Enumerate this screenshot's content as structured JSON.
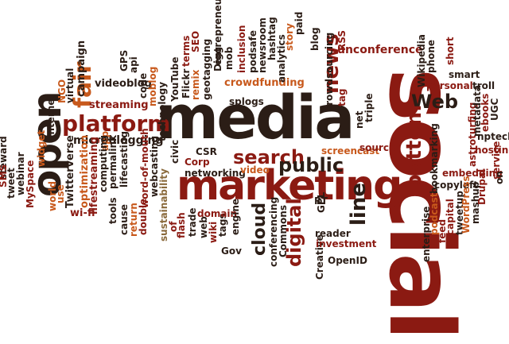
{
  "colors": {
    "dark": "#2b1d16",
    "red": "#8b1a12",
    "orange": "#c8591c",
    "tan": "#8a6a3c"
  },
  "words": {
    "social": "social",
    "media": "media",
    "marketing": "marketing",
    "open": "open",
    "platform": "platform",
    "fair": "fair",
    "news": "news",
    "search": "search",
    "public": "public",
    "Web": "Web",
    "bottom": "bottom",
    "line": "line",
    "digital": "digital",
    "cloud": "cloud",
    "unconference": "unconference",
    "crowdfunding": "crowdfunding",
    "microblogging": "microblogging",
    "streaming": "streaming",
    "videoblog": "videoblog",
    "campaign": "campaign",
    "virtual": "virtual",
    "NGO": "NGO",
    "Internet": "Internet",
    "widget": "widget",
    "MySpace": "MySpace",
    "webinar": "webinar",
    "tweet": "tweet",
    "steward": "steward",
    "SMS": "SMS",
    "Twitterverse": "Twitterverse",
    "world": "world",
    "use": "use",
    "wi-fi": "wi-fi",
    "optimization": "optimization",
    "lifestreaming": "lifestreaming",
    "app": "app",
    "computing": "computing",
    "permalink": "permalink",
    "tools": "tools",
    "cause": "cause",
    "return": "return",
    "double": "double",
    "lifecasting": "lifecasting",
    "word-of-mouth": "word-of-mouth",
    "webcasting": "webcasting",
    "sustainability": "sustainability",
    "civic": "civic",
    "flash": "flash",
    "trade": "trade",
    "of": "of",
    "wiki": "wiki",
    "web": "web",
    "tags": "tags",
    "domain": "domain",
    "networking": "networking",
    "Corp": "Corp",
    "CSR": "CSR",
    "video": "video",
    "engine": "engine",
    "Gov": "Gov",
    "GPS": "GPS",
    "api": "api",
    "code": "code",
    "moblog": "moblog",
    "technology": "technology",
    "YouTube": "YouTube",
    "Flickr": "Flickr",
    "terms": "terms",
    "remix": "remix",
    "SEO": "SEO",
    "geotagging": "geotagging",
    "Digg": "Digg",
    "mob": "mob",
    "entrepreneurship": "entrepreneurship",
    "inclusion": "inclusion",
    "podsafe": "podsafe",
    "newsroom": "newsroom",
    "hashtag": "hashtag",
    "analytics": "analytics",
    "story": "story",
    "paid": "paid",
    "blog": "blog",
    "RSS": "RSS",
    "splogs": "splogs",
    "crowdsourcing": "crowdsourcing",
    "tag": "tag",
    "net": "net",
    "triple": "triple",
    "screencast": "screencast",
    "source": "source",
    "RT": "RT",
    "GPL": "GPL",
    "conferencing": "conferencing",
    "Commons": "Commons",
    "Creative": "Creative",
    "reader": "reader",
    "investment": "investment",
    "OpenID": "OpenID",
    "enterprise": "enterprise",
    "bookmarking": "bookmarking",
    "copyleft": "copyleft",
    "embedding": "embedding",
    "podcast": "podcast",
    "feed": "feed",
    "capital": "capital",
    "tweetup": "tweetup",
    "WordPress": "WordPress",
    "mashup": "mashup",
    "astroturfing": "astroturfing",
    "Drupal": "Drupal",
    "ebooks": "ebooks",
    "metadata": "metadata",
    "hosting": "hosting",
    "nptech": "nptech",
    "service": "service",
    "on": "on",
    "UGC": "UGC",
    "Wikipedia": "Wikipedia",
    "phone": "phone",
    "short": "short",
    "smart": "smart",
    "personal": "personal",
    "troll": "troll"
  }
}
